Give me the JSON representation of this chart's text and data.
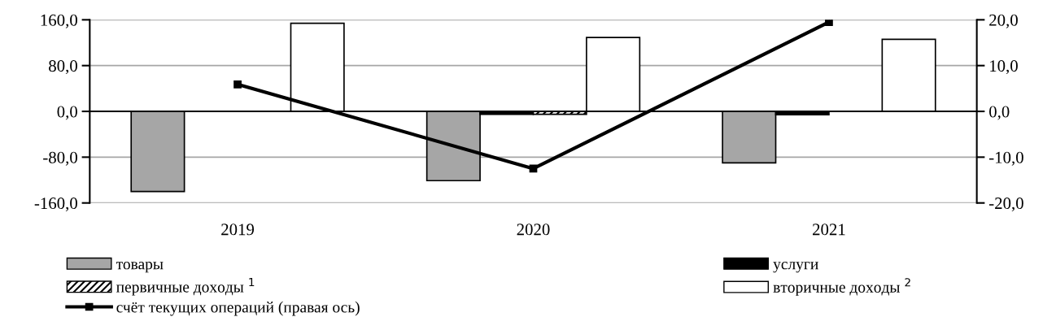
{
  "chart_data": {
    "type": "bar",
    "categories": [
      "2019",
      "2020",
      "2021"
    ],
    "series": [
      {
        "name": "товары",
        "color": "#a6a6a6",
        "values": [
          -140,
          -121,
          -90
        ]
      },
      {
        "name": "услуги",
        "color": "#000000",
        "values": [
          null,
          -5,
          -6
        ]
      },
      {
        "name": "первичные доходы $^{1}$",
        "color": "#000000",
        "values": [
          null,
          -5,
          null
        ]
      },
      {
        "name": "вторичные доходы $^{2}$",
        "color": "#ffffff",
        "values": [
          154,
          129,
          126
        ]
      },
      {
        "name": "счёт текущих операций (правая ось)",
        "type": "line",
        "axis": "y2",
        "color": "#000000",
        "marker": "square",
        "values": [
          5.9,
          -12.5,
          19.5
        ]
      }
    ],
    "ylim": [
      -160,
      160
    ],
    "yticks": [
      {
        "value": -160,
        "label": "-160,0"
      },
      {
        "value": -80,
        "label": "-80,0"
      },
      {
        "value": 0,
        "label": "0,0"
      },
      {
        "value": 80,
        "label": "80,0"
      },
      {
        "value": 160,
        "label": "160,0"
      }
    ],
    "y2lim": [
      -20,
      20
    ],
    "y2ticks": [
      {
        "value": -20,
        "label": "-20,0"
      },
      {
        "value": -10,
        "label": "-10,0"
      },
      {
        "value": 0,
        "label": "0,0"
      },
      {
        "value": 10,
        "label": "10,0"
      },
      {
        "value": 20,
        "label": "20,0"
      }
    ],
    "grid": "y",
    "legend": "bottom"
  }
}
